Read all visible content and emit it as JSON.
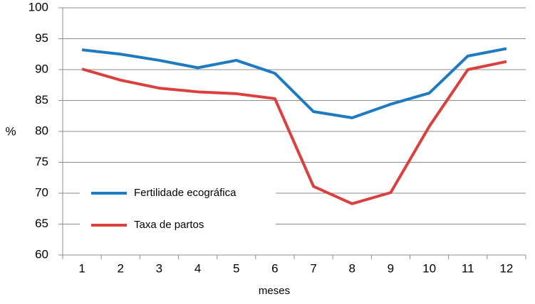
{
  "chart_data": {
    "type": "line",
    "y_label": "%",
    "x_label": "meses",
    "categories": [
      "1",
      "2",
      "3",
      "4",
      "5",
      "6",
      "7",
      "8",
      "9",
      "10",
      "11",
      "12"
    ],
    "series": [
      {
        "name": "Fertilidade ecográfica",
        "color": "#1f7bbf",
        "values": [
          93.2,
          92.5,
          91.5,
          90.3,
          91.5,
          89.4,
          83.2,
          82.2,
          84.4,
          86.2,
          92.2,
          93.4
        ]
      },
      {
        "name": "Taxa de partos",
        "color": "#d9403e",
        "values": [
          90.1,
          88.3,
          87.0,
          86.4,
          86.1,
          85.3,
          71.1,
          68.3,
          70.1,
          80.8,
          90.0,
          91.3
        ]
      }
    ],
    "ylim": [
      60,
      100
    ],
    "yticks": [
      60,
      65,
      70,
      75,
      80,
      85,
      90,
      95,
      100
    ],
    "grid": true
  }
}
